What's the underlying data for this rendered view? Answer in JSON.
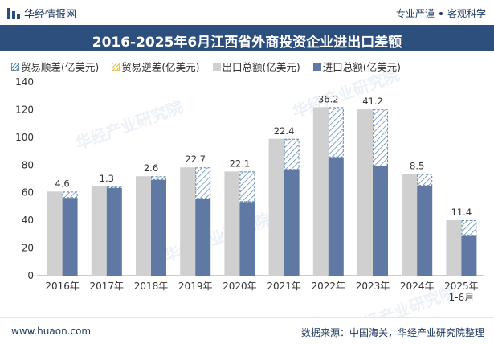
{
  "header": {
    "brand": "华经情报网",
    "slogan_left": "专业严谨",
    "slogan_right": "客观科学"
  },
  "footer": {
    "website": "www.huaon.com",
    "source": "数据来源：中国海关，华经产业研究院整理"
  },
  "watermark": "华经产业研究院",
  "colors": {
    "title_bg": "#2c4f7e",
    "export": "#d0d0d0",
    "import": "#5f78a4",
    "surplus": "#5b88b3",
    "deficit": "#e3c04a"
  },
  "chart_data": {
    "type": "bar",
    "title": "2016-2025年6月江西省外商投资企业进出口差额",
    "categories": [
      "2016年",
      "2017年",
      "2018年",
      "2019年",
      "2020年",
      "2021年",
      "2022年",
      "2023年",
      "2024年",
      "2025年\n1-6月"
    ],
    "series": [
      {
        "name": "出口总额(亿美元)",
        "values": [
          60.8,
          64.6,
          71.9,
          78.3,
          75.3,
          98.9,
          121.8,
          120.2,
          73.5,
          40.1
        ]
      },
      {
        "name": "进口总额(亿美元)",
        "values": [
          56.2,
          63.3,
          69.3,
          55.6,
          53.2,
          76.5,
          85.6,
          79.0,
          65.0,
          28.7
        ]
      },
      {
        "name": "贸易顺差(亿美元)",
        "values": [
          4.6,
          1.3,
          2.6,
          22.7,
          22.1,
          22.4,
          36.2,
          41.2,
          8.5,
          11.4
        ]
      },
      {
        "name": "贸易逆差(亿美元)",
        "values": [
          0,
          0,
          0,
          0,
          0,
          0,
          0,
          0,
          0,
          0
        ]
      }
    ],
    "legend": [
      "贸易顺差(亿美元)",
      "贸易逆差(亿美元)",
      "出口总额(亿美元)",
      "进口总额(亿美元)"
    ],
    "yticks": [
      0,
      20,
      40,
      60,
      80,
      100,
      120,
      140
    ],
    "ylim": [
      0,
      140
    ],
    "xlabel": "",
    "ylabel": ""
  }
}
